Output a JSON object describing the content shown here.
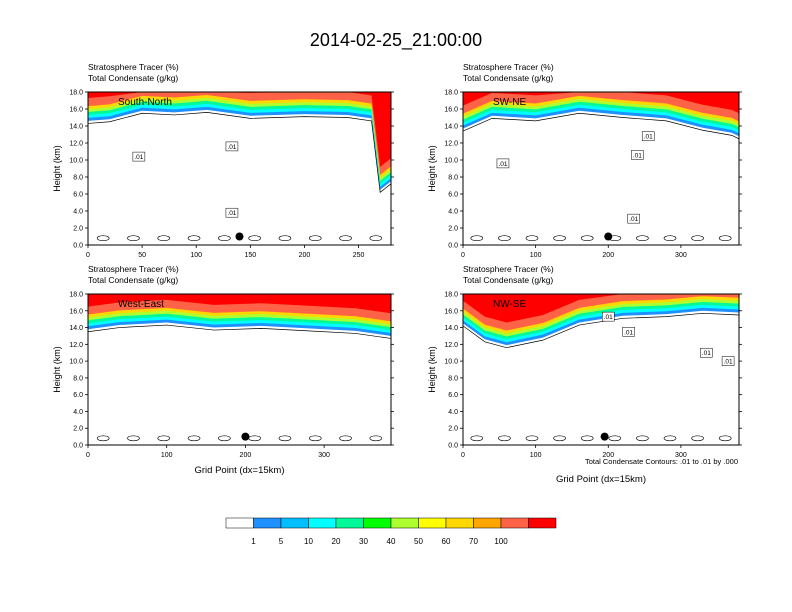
{
  "title": "2014-02-25_21:00:00",
  "footer_note": "Total Condensate Contours: .01 to .01 by .000",
  "colorbar": {
    "colors": [
      "#ffffff",
      "#1e90ff",
      "#00bfff",
      "#00ffff",
      "#00fa9a",
      "#00ff00",
      "#adff2f",
      "#ffff00",
      "#ffd700",
      "#ffa500",
      "#ff6347",
      "#ff0000"
    ],
    "labels": [
      "1",
      "5",
      "10",
      "20",
      "30",
      "40",
      "50",
      "60",
      "70",
      "100"
    ]
  },
  "chart_data": [
    {
      "type": "heatmap",
      "panel": "South-North",
      "header_line1": "Stratosphere Tracer   (%)",
      "header_line2": "Total Condensate   (g/kg)",
      "ylabel": "Height (km)",
      "xlabel": "",
      "xlim": [
        0,
        280
      ],
      "ylim": [
        0,
        18
      ],
      "xticks": [
        "0",
        "50",
        "100",
        "150",
        "200",
        "250"
      ],
      "xtick_values": [
        0,
        50,
        100,
        150,
        200,
        250
      ],
      "yticks": [
        "0.0",
        "2.0",
        "4.0",
        "6.0",
        "8.0",
        "10.0",
        "12.0",
        "14.0",
        "16.0",
        "18.0"
      ],
      "marker": [
        140,
        1.0
      ],
      "contour_labels": [
        ".01",
        ".01",
        ".01"
      ],
      "contour_label_pos": [
        [
          47,
          10.4
        ],
        [
          133,
          11.6
        ],
        [
          133,
          3.8
        ]
      ],
      "tracer_base_km": [
        [
          0,
          14.6
        ],
        [
          20,
          14.8
        ],
        [
          50,
          15.8
        ],
        [
          80,
          15.6
        ],
        [
          110,
          15.9
        ],
        [
          150,
          15.2
        ],
        [
          200,
          15.4
        ],
        [
          240,
          15.3
        ],
        [
          262,
          14.9
        ],
        [
          270,
          6.5
        ],
        [
          280,
          7.5
        ]
      ]
    },
    {
      "type": "heatmap",
      "panel": "SW-NE",
      "header_line1": "Stratosphere Tracer   (%)",
      "header_line2": "Total Condensate   (g/kg)",
      "ylabel": "Height (km)",
      "xlabel": "",
      "xlim": [
        0,
        380
      ],
      "ylim": [
        0,
        18
      ],
      "xticks": [
        "0",
        "100",
        "200",
        "300"
      ],
      "xtick_values": [
        0,
        100,
        200,
        300
      ],
      "yticks": [
        "0.0",
        "2.0",
        "4.0",
        "6.0",
        "8.0",
        "10.0",
        "12.0",
        "14.0",
        "16.0",
        "18.0"
      ],
      "marker": [
        200,
        1.0
      ],
      "contour_labels": [
        ".01",
        ".01",
        ".01",
        ".01"
      ],
      "contour_label_pos": [
        [
          55,
          9.6
        ],
        [
          240,
          10.6
        ],
        [
          255,
          12.8
        ],
        [
          235,
          3.1
        ]
      ],
      "tracer_base_km": [
        [
          0,
          13.7
        ],
        [
          40,
          15.2
        ],
        [
          100,
          14.9
        ],
        [
          160,
          15.8
        ],
        [
          220,
          15.3
        ],
        [
          280,
          14.9
        ],
        [
          330,
          13.8
        ],
        [
          370,
          13.2
        ],
        [
          380,
          12.8
        ]
      ]
    },
    {
      "type": "heatmap",
      "panel": "West-East",
      "header_line1": "Stratosphere Tracer   (%)",
      "header_line2": "Total Condensate   (g/kg)",
      "ylabel": "Height (km)",
      "xlabel": "Grid Point (dx=15km)",
      "xlim": [
        0,
        385
      ],
      "ylim": [
        0,
        18
      ],
      "xticks": [
        "0",
        "100",
        "200",
        "300"
      ],
      "xtick_values": [
        0,
        100,
        200,
        300
      ],
      "yticks": [
        "0.0",
        "2.0",
        "4.0",
        "6.0",
        "8.0",
        "10.0",
        "12.0",
        "14.0",
        "16.0",
        "18.0"
      ],
      "marker": [
        200,
        1.0
      ],
      "contour_labels": [],
      "contour_label_pos": [],
      "tracer_base_km": [
        [
          0,
          13.8
        ],
        [
          40,
          14.3
        ],
        [
          100,
          14.6
        ],
        [
          160,
          14.0
        ],
        [
          220,
          14.2
        ],
        [
          280,
          13.9
        ],
        [
          340,
          13.6
        ],
        [
          385,
          13.0
        ]
      ]
    },
    {
      "type": "heatmap",
      "panel": "NW-SE",
      "header_line1": "Stratosphere Tracer   (%)",
      "header_line2": "Total Condensate   (g/kg)",
      "ylabel": "Height (km)",
      "xlabel": "Grid Point (dx=15km)",
      "xlim": [
        0,
        380
      ],
      "ylim": [
        0,
        18
      ],
      "xticks": [
        "0",
        "100",
        "200",
        "300"
      ],
      "xtick_values": [
        0,
        100,
        200,
        300
      ],
      "yticks": [
        "0.0",
        "2.0",
        "4.0",
        "6.0",
        "8.0",
        "10.0",
        "12.0",
        "14.0",
        "16.0",
        "18.0"
      ],
      "marker": [
        195,
        1.0
      ],
      "contour_labels": [
        ".01",
        ".01",
        ".01",
        ".01"
      ],
      "contour_label_pos": [
        [
          200,
          15.3
        ],
        [
          228,
          13.5
        ],
        [
          335,
          11.0
        ],
        [
          365,
          10.0
        ]
      ],
      "tracer_base_km": [
        [
          0,
          14.5
        ],
        [
          30,
          12.6
        ],
        [
          60,
          11.9
        ],
        [
          110,
          12.8
        ],
        [
          160,
          14.6
        ],
        [
          220,
          15.4
        ],
        [
          280,
          15.6
        ],
        [
          330,
          16.0
        ],
        [
          380,
          15.8
        ]
      ]
    }
  ]
}
